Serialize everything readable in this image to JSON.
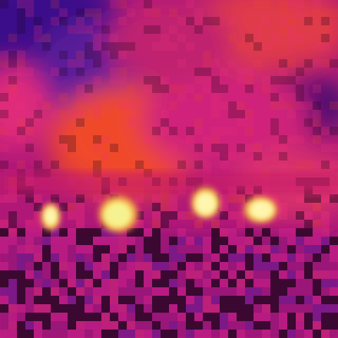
{
  "scene": {
    "palette": {
      "deep_purple": "#2a0a6a",
      "violet": "#5a1a9a",
      "magenta": "#d0208a",
      "hot_pink": "#f0307a",
      "orange_red": "#f04a2a",
      "dark": "#1a0418",
      "glow_yellow": "#f6f07a",
      "glow_core": "#fffbd0"
    }
  }
}
